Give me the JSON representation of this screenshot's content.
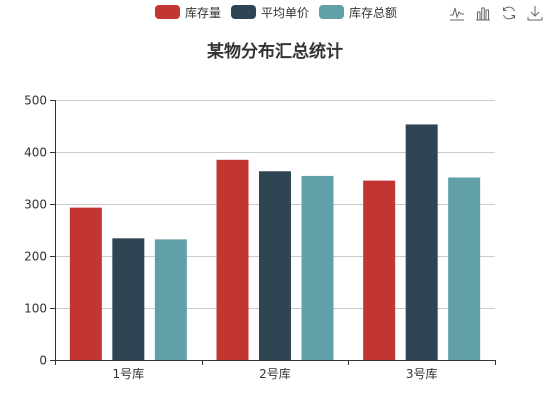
{
  "title": "某物分布汇总统计",
  "toolbox": [
    "line-chart-icon",
    "bar-chart-icon",
    "restore-icon",
    "save-image-icon"
  ],
  "chart_data": {
    "type": "bar",
    "title": "某物分布汇总统计",
    "categories": [
      "1号库",
      "2号库",
      "3号库"
    ],
    "series": [
      {
        "name": "库存量",
        "color": "#c23531",
        "values": [
          293,
          385,
          345
        ]
      },
      {
        "name": "平均单价",
        "color": "#2f4554",
        "values": [
          234,
          363,
          453
        ]
      },
      {
        "name": "库存总额",
        "color": "#61a0a8",
        "values": [
          232,
          354,
          351
        ]
      }
    ],
    "ylim": [
      0,
      500
    ],
    "yticks": [
      0,
      100,
      200,
      300,
      400,
      500
    ],
    "grid": true,
    "legend_position": "top"
  }
}
